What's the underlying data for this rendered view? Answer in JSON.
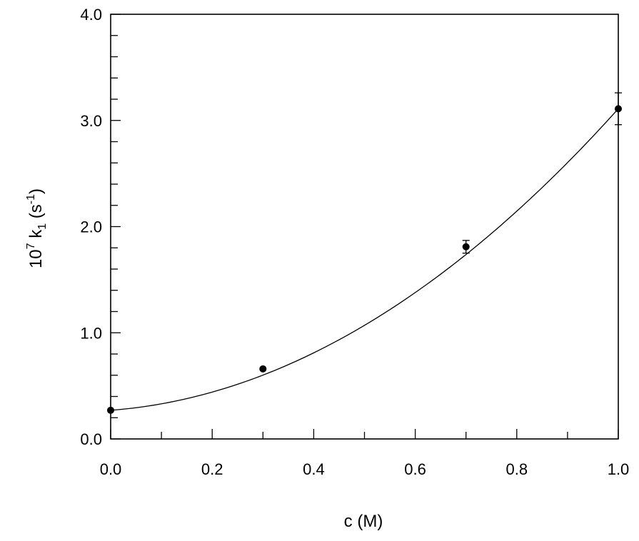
{
  "chart_data": {
    "type": "scatter",
    "xlabel": "c (M)",
    "ylabel_parts": {
      "prefix": "10",
      "exp": "7",
      "var": " k",
      "sub": "1",
      "unit_open": " (s",
      "unit_exp": "-1",
      "unit_close": ")"
    },
    "xlim": [
      0.0,
      1.0
    ],
    "ylim": [
      0.0,
      4.0
    ],
    "x_major_ticks": [
      0.0,
      0.2,
      0.4,
      0.6,
      0.8,
      1.0
    ],
    "x_tick_labels": [
      "0.0",
      "0.2",
      "0.4",
      "0.6",
      "0.8",
      "1.0"
    ],
    "y_major_ticks": [
      0.0,
      1.0,
      2.0,
      3.0,
      4.0
    ],
    "y_tick_labels": [
      "0.0",
      "1.0",
      "2.0",
      "3.0",
      "4.0"
    ],
    "x_minor_step": 0.1,
    "y_minor_step": 0.2,
    "grid": false,
    "series": [
      {
        "points": [
          {
            "x": 0.0,
            "y": 0.27,
            "err": 0.0
          },
          {
            "x": 0.3,
            "y": 0.66,
            "err": 0.0
          },
          {
            "x": 0.7,
            "y": 1.81,
            "err": 0.06
          },
          {
            "x": 1.0,
            "y": 3.11,
            "err": 0.15
          }
        ]
      }
    ],
    "fit_curve": {
      "type": "quadratic",
      "coefficients": {
        "a": 2.48,
        "b": 0.36,
        "c": 0.27
      }
    }
  }
}
